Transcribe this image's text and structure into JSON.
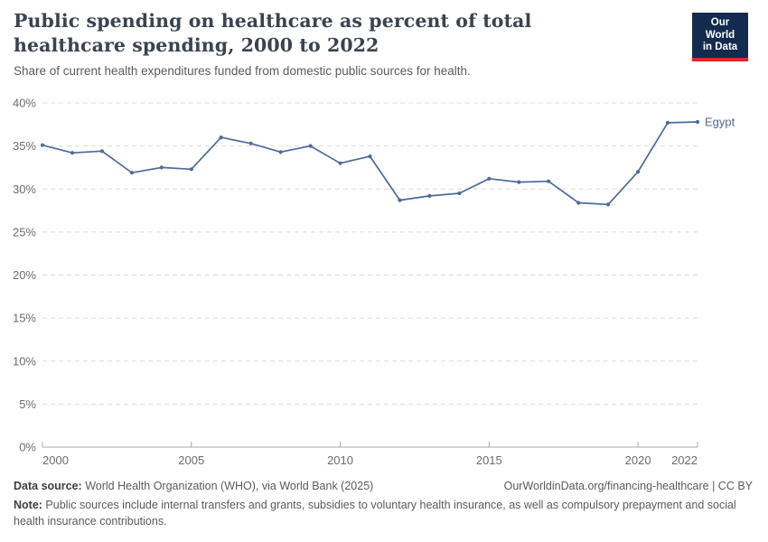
{
  "header": {
    "title": "Public spending on healthcare as percent of total healthcare spending, 2000 to 2022",
    "subtitle": "Share of current health expenditures funded from domestic public sources for health.",
    "logo": {
      "line1": "Our World",
      "line2": "in Data",
      "bg_color": "#122B4E",
      "accent_color": "#E5262C"
    }
  },
  "chart_data": {
    "type": "line",
    "title": "Public spending on healthcare as percent of total healthcare spending, 2000 to 2022",
    "subtitle": "Share of current health expenditures funded from domestic public sources for health.",
    "xlabel": "",
    "ylabel": "",
    "xlim": [
      2000,
      2022
    ],
    "ylim": [
      0,
      40
    ],
    "x_ticks": [
      2000,
      2005,
      2010,
      2015,
      2020,
      2022
    ],
    "y_ticks": [
      0,
      5,
      10,
      15,
      20,
      25,
      30,
      35,
      40
    ],
    "y_unit": "%",
    "grid": "horizontal-dashed",
    "legend_position": "end-of-line-label",
    "series": [
      {
        "name": "Egypt",
        "color": "#4C6A9C",
        "x": [
          2000,
          2001,
          2002,
          2003,
          2004,
          2005,
          2006,
          2007,
          2008,
          2009,
          2010,
          2011,
          2012,
          2013,
          2014,
          2015,
          2016,
          2017,
          2018,
          2019,
          2020,
          2021,
          2022
        ],
        "values": [
          35.1,
          34.2,
          34.4,
          31.9,
          32.5,
          32.3,
          36.0,
          35.3,
          34.3,
          35.0,
          33.0,
          33.8,
          28.7,
          29.2,
          29.5,
          31.2,
          30.8,
          30.9,
          28.4,
          28.2,
          32.0,
          37.7,
          37.8
        ]
      }
    ],
    "axis_color": "#a8a8a8",
    "gridline_color": "#dcdcdc",
    "tick_label_color": "#6c6c6c"
  },
  "footer": {
    "datasource_label": "Data source:",
    "datasource_text": " World Health Organization (WHO), via World Bank (2025)",
    "link_text": "OurWorldinData.org/financing-healthcare | CC BY",
    "note_label": "Note:",
    "note_text": " Public sources include internal transfers and grants, subsidies to voluntary health insurance, as well as compulsory prepayment and social health insurance contributions."
  }
}
